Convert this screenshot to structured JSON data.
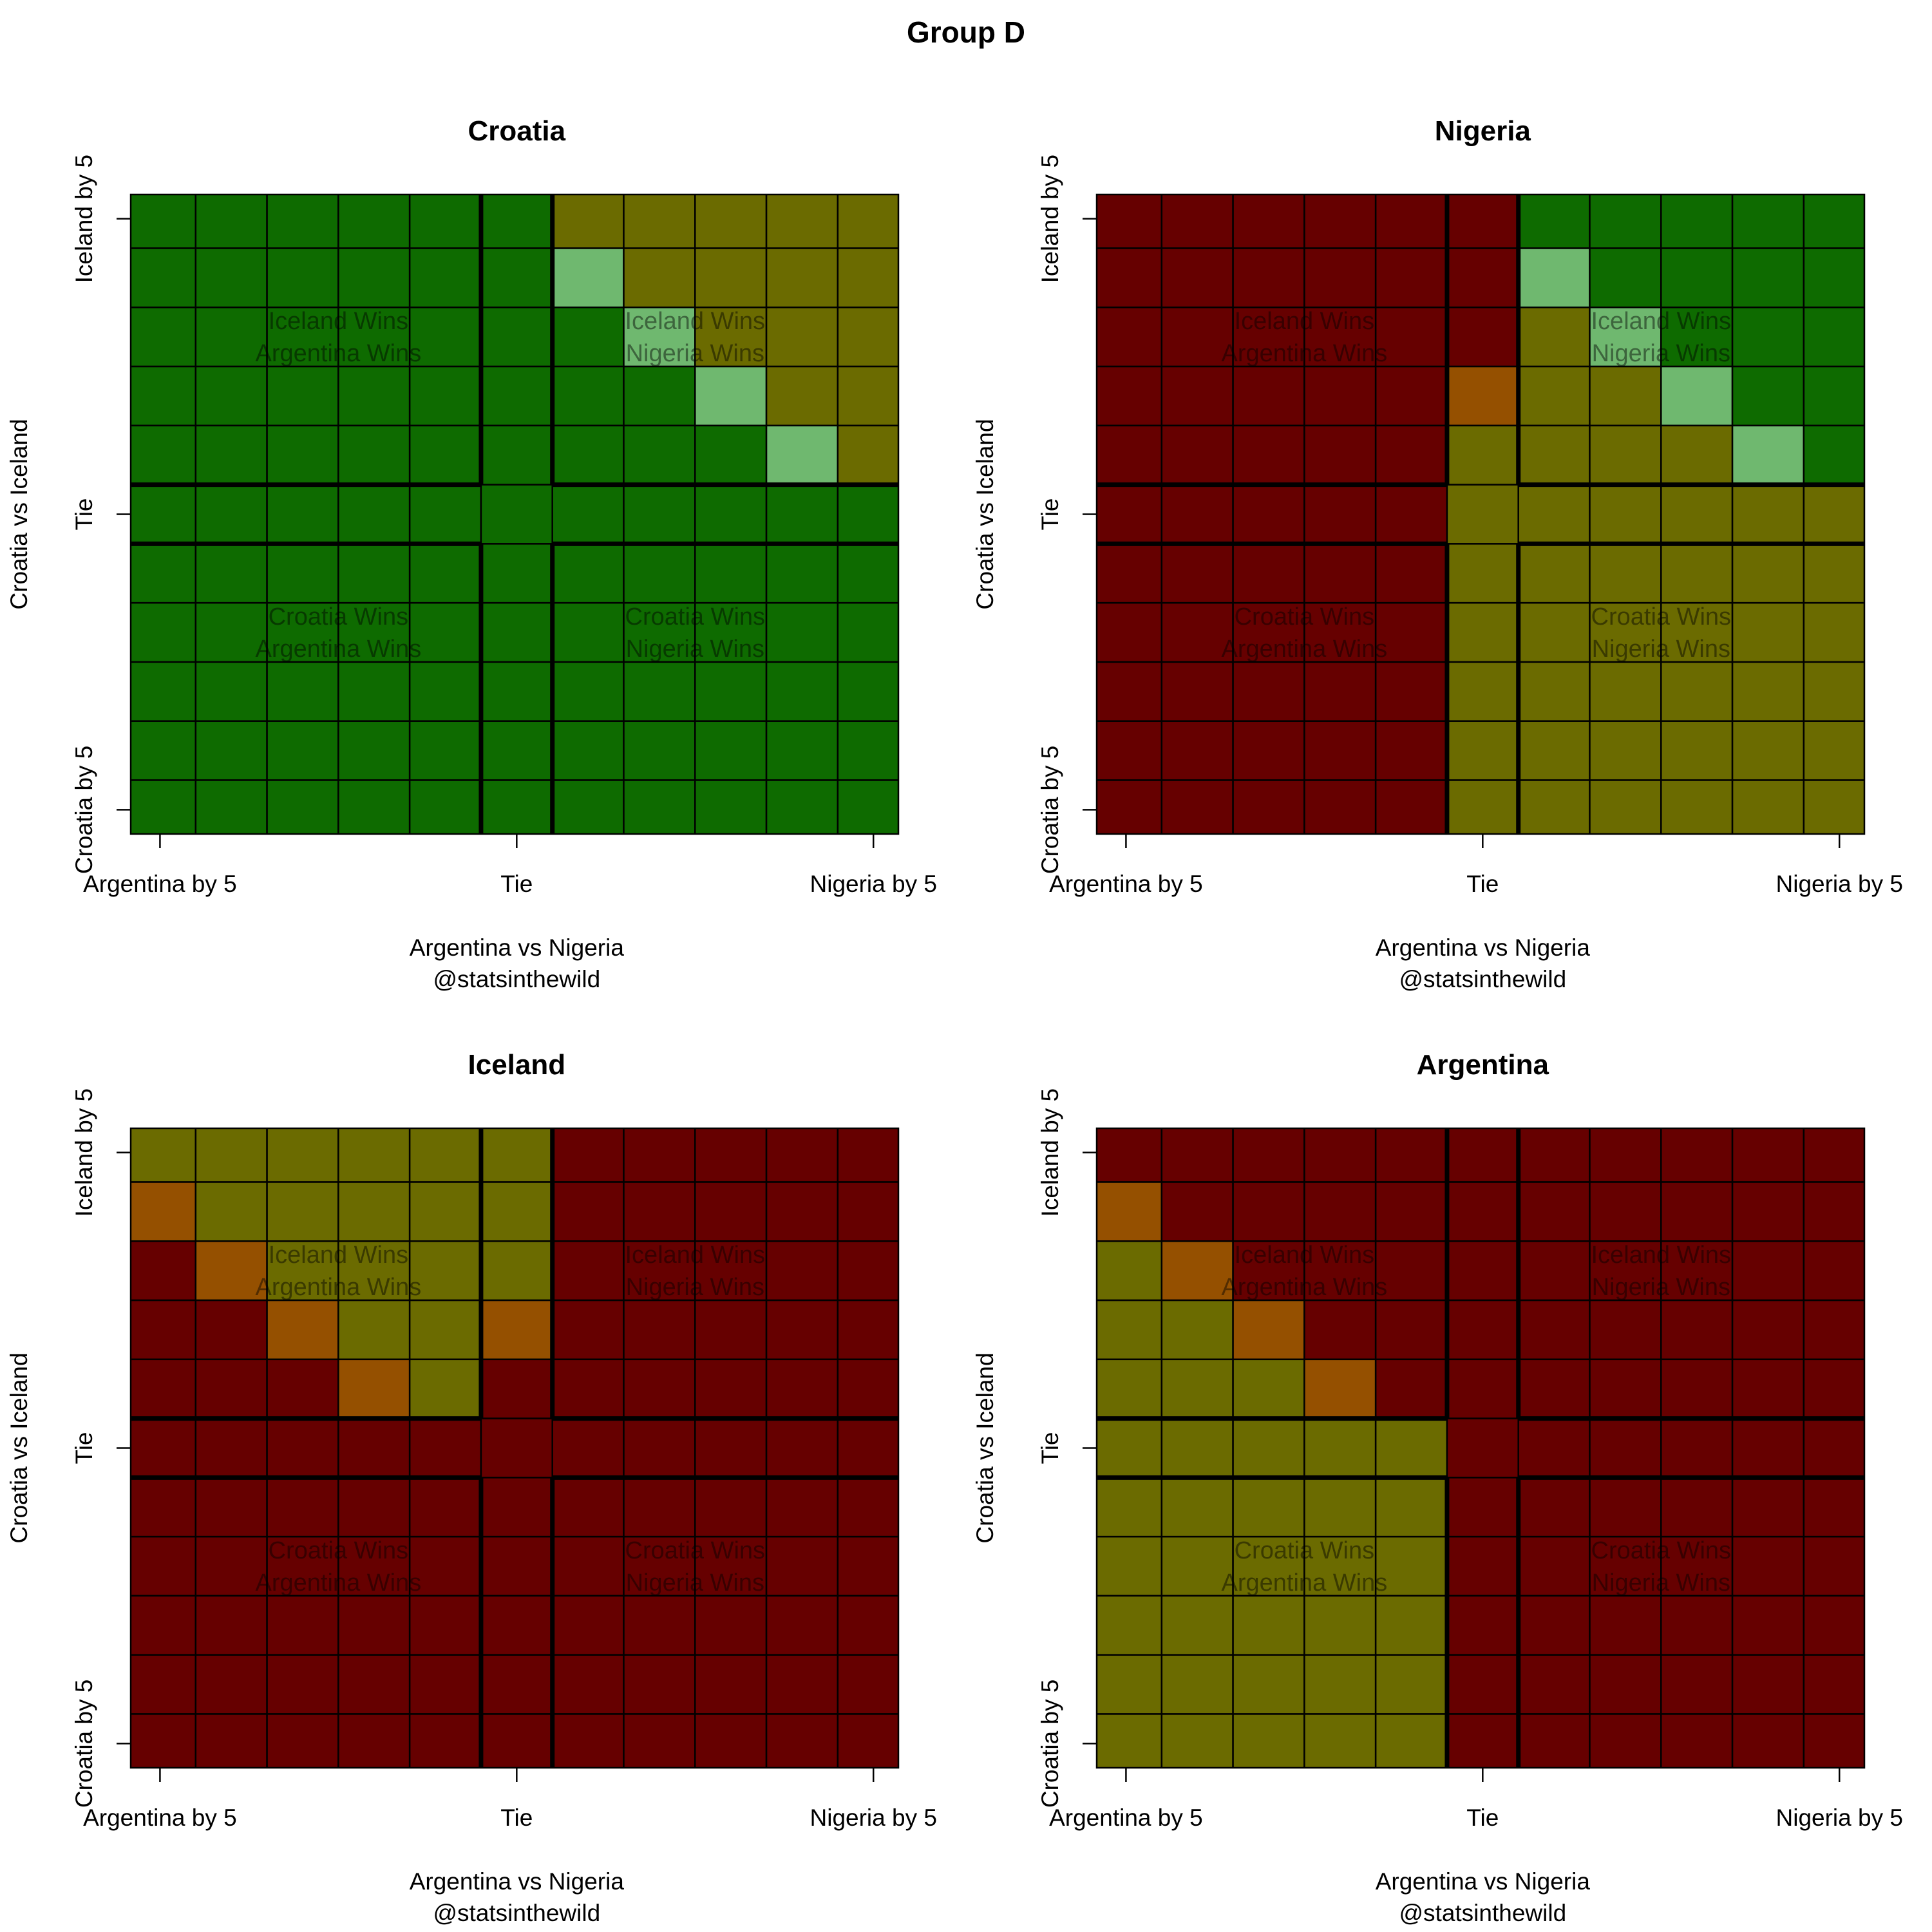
{
  "title": "Group D",
  "colors": {
    "G": "#0e6b00",
    "O": "#6b6b00",
    "L": "#6fb86f",
    "R": "#660000",
    "A": "#955000"
  },
  "chart_data": {
    "type": "heatmap",
    "x_axis": {
      "label": "Argentina vs Nigeria",
      "ticks": [
        -5,
        0,
        5
      ],
      "tick_labels": [
        "Argentina by 5",
        "Tie",
        "Nigeria by 5"
      ],
      "categories": [
        -5,
        -4,
        -3,
        -2,
        -1,
        0,
        1,
        2,
        3,
        4,
        5
      ]
    },
    "y_axis": {
      "label": "Croatia vs Iceland",
      "ticks": [
        5,
        0,
        -5
      ],
      "tick_labels": [
        "Iceland by 5",
        "Tie",
        "Croatia by 5"
      ],
      "categories_top_to_bottom": [
        5,
        4,
        3,
        2,
        1,
        0,
        -1,
        -2,
        -3,
        -4,
        -5
      ]
    },
    "credit": "@statsinthewild",
    "quadrant_labels": {
      "top_left": [
        "Iceland Wins",
        "Argentina Wins"
      ],
      "top_right": [
        "Iceland Wins",
        "Nigeria Wins"
      ],
      "bottom_left": [
        "Croatia Wins",
        "Argentina Wins"
      ],
      "bottom_right": [
        "Croatia Wins",
        "Nigeria Wins"
      ]
    },
    "color_key": {
      "G": "dark green",
      "O": "olive",
      "L": "light green",
      "R": "dark red",
      "A": "orange"
    },
    "panels": [
      {
        "title": "Croatia",
        "rows": [
          "GGGGGGOOOOO",
          "GGGGGGLOOOO",
          "GGGGGGGLOOO",
          "GGGGGGGGLOO",
          "GGGGGGGGGLO",
          "GGGGGGGGGGG",
          "GGGGGGGGGGG",
          "GGGGGGGGGGG",
          "GGGGGGGGGGG",
          "GGGGGGGGGGG",
          "GGGGGGGGGGG"
        ]
      },
      {
        "title": "Nigeria",
        "rows": [
          "RRRRRRGGGGG",
          "RRRRRRLGGGG",
          "RRRRRROLGGG",
          "RRRRRAOOLGG",
          "RRRRROOOOLG",
          "RRRRROOOOOO",
          "RRRRROOOOOO",
          "RRRRROOOOOO",
          "RRRRROOOOOO",
          "RRRRROOOOOO",
          "RRRRROOOOOO"
        ]
      },
      {
        "title": "Iceland",
        "rows": [
          "OOOOOORRRRR",
          "AOOOOORRRRR",
          "RAOOOORRRRR",
          "RRAOOARRRRR",
          "RRRAORRRRRR",
          "RRRRRRRRRRR",
          "RRRRRRRRRRR",
          "RRRRRRRRRRR",
          "RRRRRRRRRRR",
          "RRRRRRRRRRR",
          "RRRRRRRRRRR"
        ]
      },
      {
        "title": "Argentina",
        "rows": [
          "RRRRRRRRRRR",
          "ARRRRRRRRRR",
          "OARRRRRRRRR",
          "OOARRRRRRRR",
          "OOOARRRRRRR",
          "OOOOORRRRRR",
          "OOOOORRRRRR",
          "OOOOORRRRRR",
          "OOOOORRRRRR",
          "OOOOORRRRRR",
          "OOOOORRRRRR"
        ]
      }
    ]
  }
}
